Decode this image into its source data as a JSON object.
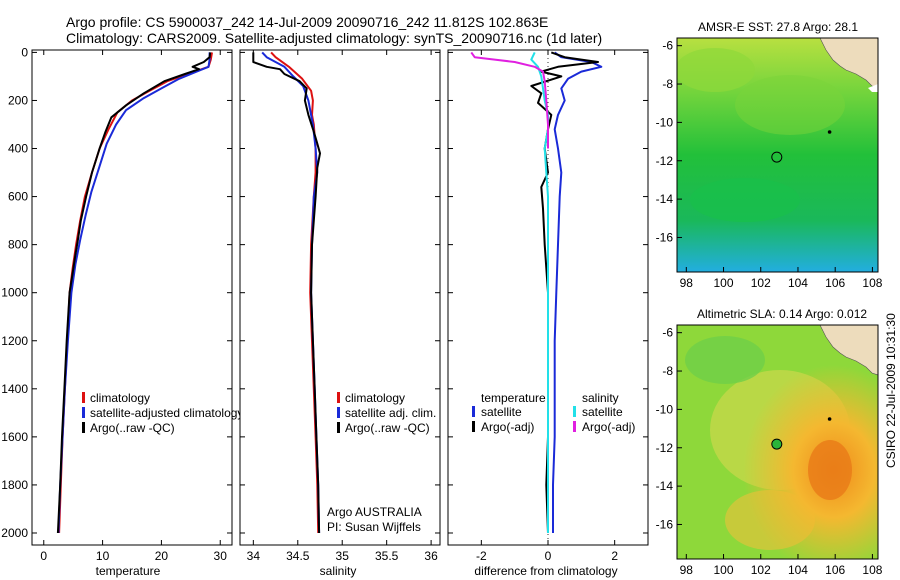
{
  "title": {
    "line1": "Argo profile: CS 5900037_242 14-Jul-2009 20090716_242 11.812S 102.863E",
    "line2": "Climatology: CARS2009. Satellite-adjusted climatology: synTS_20090716.nc (1d later)"
  },
  "side_stamp": "CSIRO 22-Jul-2009 10:31:30",
  "colors": {
    "red": "#dd1111",
    "blue": "#1a2ad8",
    "black": "#000000",
    "cyan": "#22e0e8",
    "magenta": "#e020e0"
  },
  "chart_data": [
    {
      "id": "temperature",
      "type": "line",
      "xlabel": "temperature",
      "xlim": [
        -2,
        32
      ],
      "ylim": [
        2050,
        -10
      ],
      "xticks": [
        0,
        10,
        20,
        30
      ],
      "yticks": [
        0,
        200,
        400,
        600,
        800,
        1000,
        1200,
        1400,
        1600,
        1800,
        2000
      ],
      "legend": [
        "climatology",
        "satellite-adjusted climatology",
        "Argo(..raw -QC)"
      ],
      "series": [
        {
          "name": "climatology",
          "color": "red",
          "points": [
            [
              28.6,
              0
            ],
            [
              28.4,
              30
            ],
            [
              28.0,
              60
            ],
            [
              24.5,
              90
            ],
            [
              21,
              120
            ],
            [
              18,
              160
            ],
            [
              15,
              200
            ],
            [
              12.5,
              250
            ],
            [
              11,
              320
            ],
            [
              9.5,
              400
            ],
            [
              8.2,
              500
            ],
            [
              7,
              600
            ],
            [
              6.2,
              700
            ],
            [
              5.5,
              800
            ],
            [
              4.9,
              900
            ],
            [
              4.4,
              1000
            ],
            [
              4.0,
              1200
            ],
            [
              3.6,
              1400
            ],
            [
              3.2,
              1600
            ],
            [
              2.9,
              1800
            ],
            [
              2.6,
              2000
            ]
          ]
        },
        {
          "name": "satellite-adjusted climatology",
          "color": "blue",
          "points": [
            [
              28.2,
              0
            ],
            [
              28.2,
              30
            ],
            [
              28.0,
              60
            ],
            [
              26,
              80
            ],
            [
              23,
              110
            ],
            [
              20,
              150
            ],
            [
              17,
              190
            ],
            [
              14,
              240
            ],
            [
              12.3,
              300
            ],
            [
              10.7,
              380
            ],
            [
              9.4,
              480
            ],
            [
              8.1,
              580
            ],
            [
              7.1,
              680
            ],
            [
              6.2,
              780
            ],
            [
              5.4,
              880
            ],
            [
              4.7,
              1000
            ],
            [
              4.1,
              1200
            ],
            [
              3.6,
              1400
            ],
            [
              3.2,
              1600
            ],
            [
              2.8,
              1800
            ],
            [
              2.5,
              2000
            ]
          ]
        },
        {
          "name": "Argo(..raw -QC)",
          "color": "black",
          "points": [
            [
              28.3,
              0
            ],
            [
              28.2,
              20
            ],
            [
              27.2,
              40
            ],
            [
              25.3,
              60
            ],
            [
              26.4,
              70
            ],
            [
              24,
              90
            ],
            [
              20.5,
              120
            ],
            [
              17,
              170
            ],
            [
              14,
              220
            ],
            [
              11.5,
              270
            ],
            [
              10.5,
              330
            ],
            [
              9.5,
              400
            ],
            [
              8.2,
              500
            ],
            [
              7.2,
              600
            ],
            [
              6.3,
              700
            ],
            [
              5.8,
              780
            ],
            [
              5.4,
              840
            ],
            [
              4.9,
              920
            ],
            [
              4.4,
              1000
            ],
            [
              3.9,
              1200
            ],
            [
              3.5,
              1400
            ],
            [
              3.1,
              1600
            ],
            [
              2.8,
              1800
            ],
            [
              2.4,
              2000
            ]
          ]
        }
      ]
    },
    {
      "id": "salinity",
      "type": "line",
      "xlabel": "salinity",
      "xlim": [
        33.85,
        36.1
      ],
      "ylim": [
        2050,
        -10
      ],
      "xticks": [
        34,
        34.5,
        35,
        35.5,
        36
      ],
      "xticklabels": [
        "34",
        "34.5",
        "35",
        "35.5",
        "36"
      ],
      "legend": [
        "climatology",
        "satellite adj. clim.",
        "Argo(..raw -QC)"
      ],
      "annotation": [
        "Argo AUSTRALIA",
        "PI: Susan Wijffels"
      ],
      "series": [
        {
          "name": "climatology",
          "color": "red",
          "points": [
            [
              34.2,
              0
            ],
            [
              34.25,
              20
            ],
            [
              34.4,
              60
            ],
            [
              34.55,
              110
            ],
            [
              34.65,
              160
            ],
            [
              34.67,
              200
            ],
            [
              34.66,
              260
            ],
            [
              34.68,
              300
            ],
            [
              34.7,
              400
            ],
            [
              34.7,
              500
            ],
            [
              34.68,
              600
            ],
            [
              34.65,
              800
            ],
            [
              34.64,
              1000
            ],
            [
              34.66,
              1200
            ],
            [
              34.68,
              1400
            ],
            [
              34.7,
              1600
            ],
            [
              34.72,
              1800
            ],
            [
              34.73,
              2000
            ]
          ]
        },
        {
          "name": "satellite adj. clim.",
          "color": "blue",
          "points": [
            [
              34.1,
              0
            ],
            [
              34.15,
              20
            ],
            [
              34.35,
              60
            ],
            [
              34.45,
              100
            ],
            [
              34.56,
              140
            ],
            [
              34.62,
              200
            ],
            [
              34.65,
              260
            ],
            [
              34.67,
              300
            ],
            [
              34.7,
              400
            ],
            [
              34.72,
              500
            ],
            [
              34.68,
              600
            ],
            [
              34.66,
              800
            ],
            [
              34.65,
              1000
            ],
            [
              34.67,
              1200
            ],
            [
              34.69,
              1400
            ],
            [
              34.71,
              1600
            ],
            [
              34.73,
              1800
            ],
            [
              34.74,
              2000
            ]
          ]
        },
        {
          "name": "Argo(..raw -QC)",
          "color": "black",
          "points": [
            [
              34.0,
              0
            ],
            [
              34.0,
              40
            ],
            [
              34.15,
              60
            ],
            [
              34.3,
              70
            ],
            [
              34.35,
              90
            ],
            [
              34.52,
              120
            ],
            [
              34.6,
              150
            ],
            [
              34.58,
              200
            ],
            [
              34.62,
              260
            ],
            [
              34.68,
              330
            ],
            [
              34.72,
              380
            ],
            [
              34.75,
              420
            ],
            [
              34.72,
              480
            ],
            [
              34.7,
              600
            ],
            [
              34.66,
              800
            ],
            [
              34.65,
              1000
            ],
            [
              34.67,
              1200
            ],
            [
              34.69,
              1400
            ],
            [
              34.71,
              1600
            ],
            [
              34.73,
              1800
            ],
            [
              34.74,
              2000
            ]
          ]
        }
      ]
    },
    {
      "id": "difference",
      "type": "line",
      "xlabel": "difference from climatology",
      "xlim": [
        -3,
        3
      ],
      "ylim": [
        2050,
        -10
      ],
      "xticks": [
        -2,
        0,
        2
      ],
      "legend_temperature_heading": "temperature",
      "legend_salinity_heading": "salinity",
      "legend": [
        "satellite",
        "Argo(-adj)",
        "satellite",
        "Argo(-adj)"
      ],
      "series": [
        {
          "name": "temperature satellite",
          "color": "blue",
          "points": [
            [
              0.2,
              0
            ],
            [
              0.4,
              20
            ],
            [
              1.3,
              40
            ],
            [
              1.6,
              60
            ],
            [
              1.0,
              80
            ],
            [
              0.6,
              110
            ],
            [
              0.4,
              150
            ],
            [
              0.5,
              200
            ],
            [
              0.3,
              260
            ],
            [
              0.2,
              320
            ],
            [
              0.3,
              400
            ],
            [
              0.4,
              500
            ],
            [
              0.35,
              600
            ],
            [
              0.3,
              800
            ],
            [
              0.25,
              1000
            ],
            [
              0.2,
              1200
            ],
            [
              0.2,
              1400
            ],
            [
              0.2,
              1600
            ],
            [
              0.15,
              1800
            ],
            [
              0.15,
              2000
            ]
          ]
        },
        {
          "name": "temperature Argo(-adj)",
          "color": "black",
          "points": [
            [
              0.1,
              0
            ],
            [
              0.5,
              20
            ],
            [
              1.5,
              40
            ],
            [
              0.3,
              60
            ],
            [
              -0.2,
              80
            ],
            [
              0.4,
              100
            ],
            [
              -0.5,
              140
            ],
            [
              -0.2,
              170
            ],
            [
              -0.3,
              210
            ],
            [
              0.1,
              260
            ],
            [
              0.0,
              320
            ],
            [
              -0.1,
              400
            ],
            [
              0.0,
              500
            ],
            [
              -0.2,
              560
            ],
            [
              -0.15,
              650
            ],
            [
              -0.1,
              800
            ],
            [
              0.0,
              1000
            ],
            [
              0.0,
              1200
            ],
            [
              0.0,
              1400
            ],
            [
              0.0,
              1600
            ],
            [
              -0.05,
              1800
            ],
            [
              0.0,
              2000
            ]
          ]
        },
        {
          "name": "salinity satellite",
          "color": "cyan",
          "points": [
            [
              -0.4,
              0
            ],
            [
              -0.5,
              30
            ],
            [
              -0.3,
              60
            ],
            [
              -0.2,
              100
            ],
            [
              -0.15,
              150
            ],
            [
              -0.1,
              200
            ],
            [
              0.0,
              260
            ],
            [
              0.0,
              320
            ],
            [
              -0.1,
              400
            ],
            [
              -0.05,
              500
            ],
            [
              0.0,
              600
            ],
            [
              0.0,
              800
            ],
            [
              0.0,
              1000
            ],
            [
              0.0,
              1200
            ],
            [
              0.0,
              1400
            ],
            [
              0.0,
              1600
            ],
            [
              0.0,
              1800
            ],
            [
              0.0,
              2000
            ]
          ]
        },
        {
          "name": "salinity Argo(-adj)",
          "color": "magenta",
          "points": [
            [
              -2.3,
              0
            ],
            [
              -2.2,
              20
            ],
            [
              -1.6,
              30
            ],
            [
              -1.0,
              40
            ],
            [
              -0.4,
              60
            ],
            [
              -0.15,
              80
            ],
            [
              -0.1,
              120
            ],
            [
              -0.05,
              200
            ],
            [
              0.0,
              300
            ],
            [
              0.0,
              400
            ]
          ]
        }
      ]
    },
    {
      "id": "sst_map",
      "type": "heatmap",
      "title": "AMSR-E SST: 27.8 Argo: 28.1",
      "xlim": [
        97.5,
        108.3
      ],
      "ylim": [
        -17.8,
        -5.6
      ],
      "xticks": [
        98,
        100,
        102,
        104,
        106,
        108
      ],
      "yticks": [
        -6,
        -8,
        -10,
        -12,
        -14,
        -16
      ],
      "argo_marker": [
        102.863,
        -11.812
      ],
      "island_marker": [
        105.7,
        -10.5
      ]
    },
    {
      "id": "sla_map",
      "type": "heatmap",
      "title": "Altimetric SLA: 0.14 Argo: 0.012",
      "xlim": [
        97.5,
        108.3
      ],
      "ylim": [
        -17.8,
        -5.6
      ],
      "xticks": [
        98,
        100,
        102,
        104,
        106,
        108
      ],
      "yticks": [
        -6,
        -8,
        -10,
        -12,
        -14,
        -16
      ],
      "argo_marker": [
        102.863,
        -11.812
      ],
      "island_marker": [
        105.7,
        -10.5
      ]
    }
  ]
}
